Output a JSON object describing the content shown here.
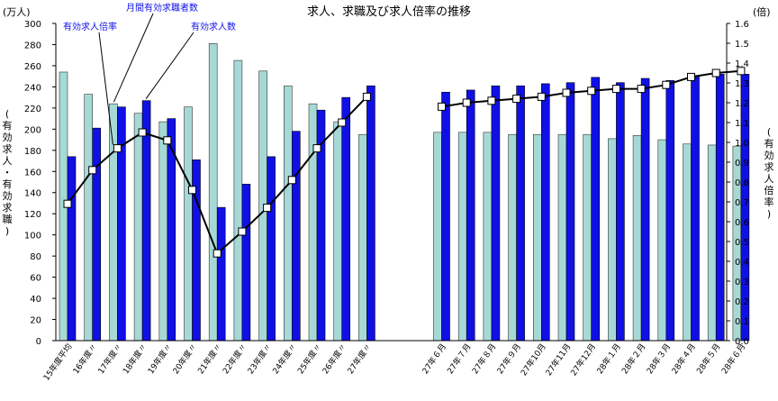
{
  "chart_data": {
    "type": "bar",
    "title": "求人、求職及び求人倍率の推移",
    "left_unit": "(万人)",
    "right_unit": "(倍)",
    "left_axis_label": "(有効求人・有効求職)",
    "right_axis_label": "(有効求人倍率)",
    "ylim_left": [
      0,
      300
    ],
    "ylim_right": [
      0.0,
      1.6
    ],
    "left_ticks": [
      "0",
      "20",
      "40",
      "60",
      "80",
      "100",
      "120",
      "140",
      "160",
      "180",
      "200",
      "220",
      "240",
      "260",
      "280",
      "300"
    ],
    "right_ticks": [
      "0.0",
      "0.1",
      "0.2",
      "0.3",
      "0.4",
      "0.5",
      "0.6",
      "0.7",
      "0.8",
      "0.9",
      "1.0",
      "1.1",
      "1.2",
      "1.3",
      "1.4",
      "1.5",
      "1.6"
    ],
    "grid": false,
    "categories": [
      "15年度平均",
      "16年度〃",
      "17年度〃",
      "18年度〃",
      "19年度〃",
      "20年度〃",
      "21年度〃",
      "22年度〃",
      "23年度〃",
      "24年度〃",
      "25年度〃",
      "26年度〃",
      "27年度〃",
      "27年６月",
      "27年７月",
      "27年８月",
      "27年９月",
      "27年10月",
      "27年11月",
      "27年12月",
      "28年１月",
      "28年２月",
      "28年３月",
      "28年４月",
      "28年５月",
      "28年６月"
    ],
    "series": [
      {
        "name": "月間有効求職者数",
        "axis": "left",
        "color": "#a6d9d6",
        "values": [
          254,
          233,
          224,
          215,
          207,
          221,
          281,
          265,
          255,
          241,
          224,
          207,
          195,
          197,
          197,
          197,
          195,
          195,
          195,
          195,
          191,
          194,
          190,
          186,
          185,
          184
        ]
      },
      {
        "name": "有効求人数",
        "axis": "left",
        "color": "#1010e6",
        "values": [
          174,
          201,
          221,
          227,
          210,
          171,
          126,
          148,
          174,
          198,
          218,
          230,
          241,
          235,
          237,
          241,
          241,
          243,
          244,
          249,
          244,
          248,
          246,
          250,
          252,
          252
        ]
      },
      {
        "name": "有効求人倍率",
        "axis": "right",
        "type": "line",
        "color": "#000000",
        "values": [
          0.69,
          0.86,
          0.97,
          1.05,
          1.01,
          0.76,
          0.44,
          0.55,
          0.67,
          0.81,
          0.97,
          1.1,
          1.23,
          1.18,
          1.2,
          1.21,
          1.22,
          1.23,
          1.25,
          1.26,
          1.27,
          1.27,
          1.29,
          1.33,
          1.35,
          1.36
        ]
      }
    ],
    "legend_labels": [
      "有効求人倍率",
      "月間有効求職者数",
      "有効求人数"
    ]
  }
}
